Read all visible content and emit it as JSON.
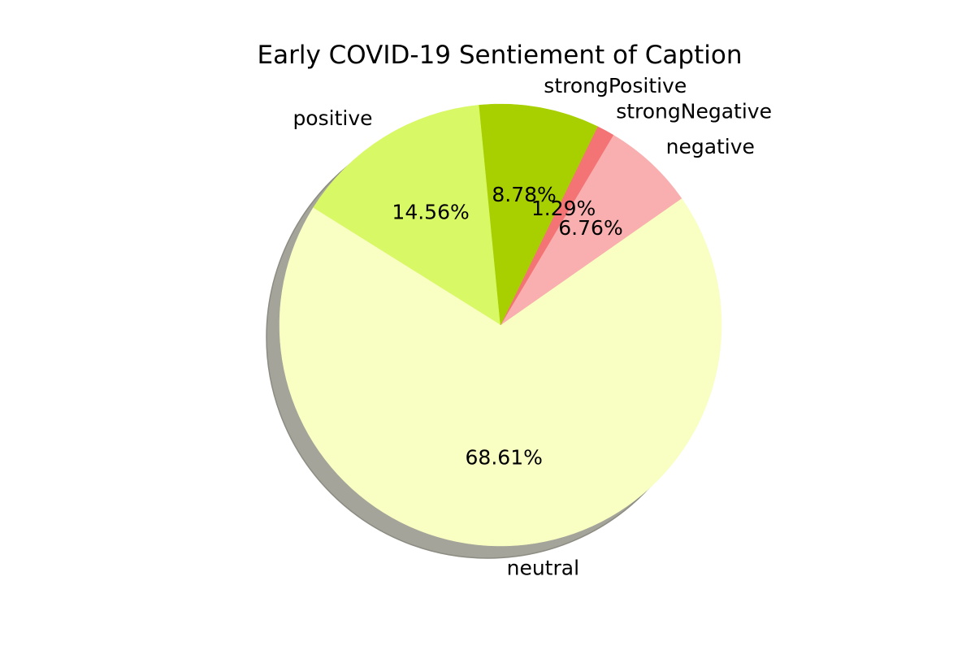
{
  "chart_data": {
    "type": "pie",
    "title": "Early COVID-19 Sentiement of Caption",
    "slices": [
      {
        "label": "positive",
        "value": 14.56,
        "pct_text": "14.56%",
        "color": "#d9f866"
      },
      {
        "label": "neutral",
        "value": 68.61,
        "pct_text": "68.61%",
        "color": "#f9fec2"
      },
      {
        "label": "negative",
        "value": 6.76,
        "pct_text": "6.76%",
        "color": "#f9afaf"
      },
      {
        "label": "strongNegative",
        "value": 1.29,
        "pct_text": "1.29%",
        "color": "#f47476"
      },
      {
        "label": "strongPositive",
        "value": 8.78,
        "pct_text": "8.78%",
        "color": "#a8d000"
      }
    ],
    "start_angle_deg": 95.55,
    "direction": "counterclockwise",
    "shadow": true,
    "shadow_color": "#a4a49b"
  }
}
